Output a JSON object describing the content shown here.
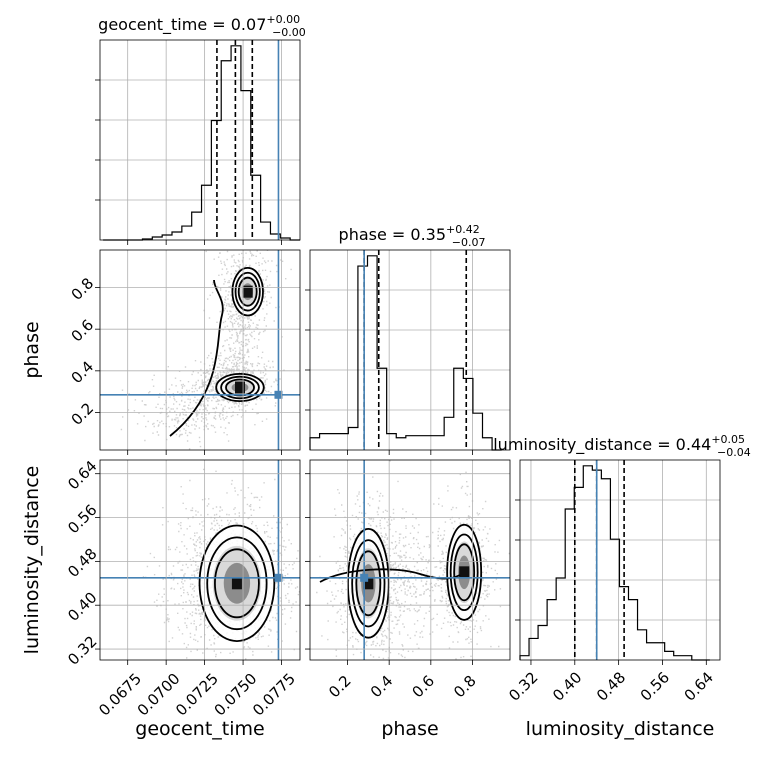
{
  "chart_data": [
    {
      "type": "histogram",
      "panel": "diag-geocent_time",
      "title_param": "geocent_time",
      "title_value": "0.07",
      "title_plus": "+0.00",
      "title_minus": "−0.00",
      "xlim": [
        0.0657,
        0.0787
      ],
      "bin_edges": [
        0.0659,
        0.06654,
        0.06718,
        0.06782,
        0.06846,
        0.0691,
        0.06974,
        0.07038,
        0.07102,
        0.07166,
        0.0723,
        0.07294,
        0.07358,
        0.07422,
        0.07486,
        0.0755,
        0.07614,
        0.07678,
        0.07742,
        0.07806,
        0.0787
      ],
      "counts": [
        0,
        0,
        0,
        0,
        1,
        3,
        5,
        8,
        14,
        28,
        55,
        120,
        180,
        195,
        150,
        65,
        18,
        6,
        2,
        0
      ],
      "quantiles": [
        0.0733,
        0.0745,
        0.0756
      ],
      "truth": 0.0773
    },
    {
      "type": "scatter+contour",
      "panel": "geocent_time-vs-phase",
      "xlim": [
        0.0657,
        0.0787
      ],
      "ylim": [
        0.02,
        0.98
      ],
      "ylabel": "phase",
      "yticks": [
        "0.2",
        "0.4",
        "0.6",
        "0.8"
      ],
      "density_peaks": [
        [
          0.0748,
          0.32
        ],
        [
          0.0753,
          0.78
        ]
      ],
      "truth": [
        0.0773,
        0.285
      ]
    },
    {
      "type": "histogram",
      "panel": "diag-phase",
      "title_param": "phase",
      "title_value": "0.35",
      "title_plus": "+0.42",
      "title_minus": "−0.07",
      "xlim": [
        0.02,
        0.98
      ],
      "bin_edges": [
        0.02,
        0.066,
        0.112,
        0.158,
        0.204,
        0.25,
        0.296,
        0.342,
        0.388,
        0.434,
        0.48,
        0.526,
        0.572,
        0.618,
        0.664,
        0.71,
        0.756,
        0.802,
        0.848,
        0.894,
        0.94
      ],
      "counts": [
        6,
        8,
        8,
        8,
        11,
        90,
        95,
        40,
        8,
        6,
        7,
        7,
        7,
        7,
        16,
        40,
        35,
        18,
        6,
        0
      ],
      "quantiles": [
        0.28,
        0.35,
        0.77
      ],
      "truth": 0.28
    },
    {
      "type": "scatter+contour",
      "panel": "geocent_time-vs-luminosity_distance",
      "xlim": [
        0.0657,
        0.0787
      ],
      "ylim": [
        0.3,
        0.665
      ],
      "ylabel": "luminosity_distance",
      "xlabel": "geocent_time",
      "yticks": [
        "0.32",
        "0.40",
        "0.48",
        "0.56",
        "0.64"
      ],
      "xticks": [
        "0.0675",
        "0.0700",
        "0.0725",
        "0.0750",
        "0.0775"
      ],
      "density_peaks": [
        [
          0.0746,
          0.44
        ]
      ],
      "truth": [
        0.0773,
        0.45
      ]
    },
    {
      "type": "scatter+contour",
      "panel": "phase-vs-luminosity_distance",
      "xlim": [
        0.02,
        0.98
      ],
      "ylim": [
        0.3,
        0.665
      ],
      "xlabel": "phase",
      "xticks": [
        "0.2",
        "0.4",
        "0.6",
        "0.8"
      ],
      "density_peaks": [
        [
          0.3,
          0.44
        ],
        [
          0.76,
          0.46
        ]
      ],
      "truth": [
        0.28,
        0.45
      ]
    },
    {
      "type": "histogram",
      "panel": "diag-luminosity_distance",
      "title_param": "luminosity_distance",
      "title_value": "0.44",
      "title_plus": "+0.05",
      "title_minus": "−0.04",
      "xlim": [
        0.3,
        0.665
      ],
      "xlabel": "luminosity_distance",
      "xticks": [
        "0.32",
        "0.40",
        "0.48",
        "0.56",
        "0.64"
      ],
      "bin_edges": [
        0.3,
        0.3165,
        0.333,
        0.3495,
        0.366,
        0.3825,
        0.399,
        0.4155,
        0.432,
        0.4485,
        0.465,
        0.4815,
        0.498,
        0.5145,
        0.531,
        0.5475,
        0.564,
        0.5805,
        0.597,
        0.6135,
        0.63,
        0.6465
      ],
      "counts": [
        1,
        5,
        8,
        14,
        19,
        35,
        40,
        45,
        44,
        42,
        28,
        17,
        14,
        7,
        4,
        4,
        2,
        1,
        1,
        0,
        0
      ],
      "quantiles": [
        0.4,
        0.44,
        0.49
      ],
      "truth": 0.44
    }
  ],
  "colors": {
    "truth": "#4682b4",
    "grid": "#b0b0b0",
    "axes": "#000000"
  }
}
